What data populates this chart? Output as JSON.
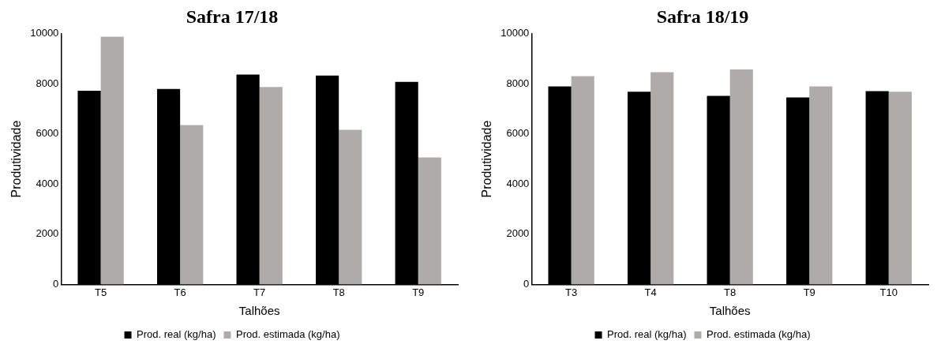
{
  "chart_data": [
    {
      "type": "bar",
      "title": "Safra 17/18",
      "xlabel": "Talhões",
      "ylabel": "Produtividade",
      "categories": [
        "T5",
        "T6",
        "T7",
        "T8",
        "T9"
      ],
      "series": [
        {
          "name": "Prod. real (kg/ha)",
          "color": "#000000",
          "values": [
            7730,
            7800,
            8370,
            8330,
            8080
          ]
        },
        {
          "name": "Prod. estimada (kg/ha)",
          "color": "#afabab",
          "values": [
            9880,
            6360,
            7880,
            6170,
            5070
          ]
        }
      ],
      "ylim": [
        0,
        10000
      ],
      "yticks": [
        0,
        2000,
        4000,
        6000,
        8000,
        10000
      ],
      "grid": false,
      "legend": "bottom"
    },
    {
      "type": "bar",
      "title": "Safra 18/19",
      "xlabel": "Talhões",
      "ylabel": "Produtividade",
      "categories": [
        "T3",
        "T4",
        "T8",
        "T9",
        "T10"
      ],
      "series": [
        {
          "name": "Prod. real (kg/ha)",
          "color": "#000000",
          "values": [
            7900,
            7690,
            7520,
            7460,
            7710
          ]
        },
        {
          "name": "Prod. estimada (kg/ha)",
          "color": "#afabab",
          "values": [
            8310,
            8470,
            8580,
            7900,
            7690
          ]
        }
      ],
      "ylim": [
        0,
        10000
      ],
      "yticks": [
        0,
        2000,
        4000,
        6000,
        8000,
        10000
      ],
      "grid": false,
      "legend": "bottom"
    }
  ]
}
